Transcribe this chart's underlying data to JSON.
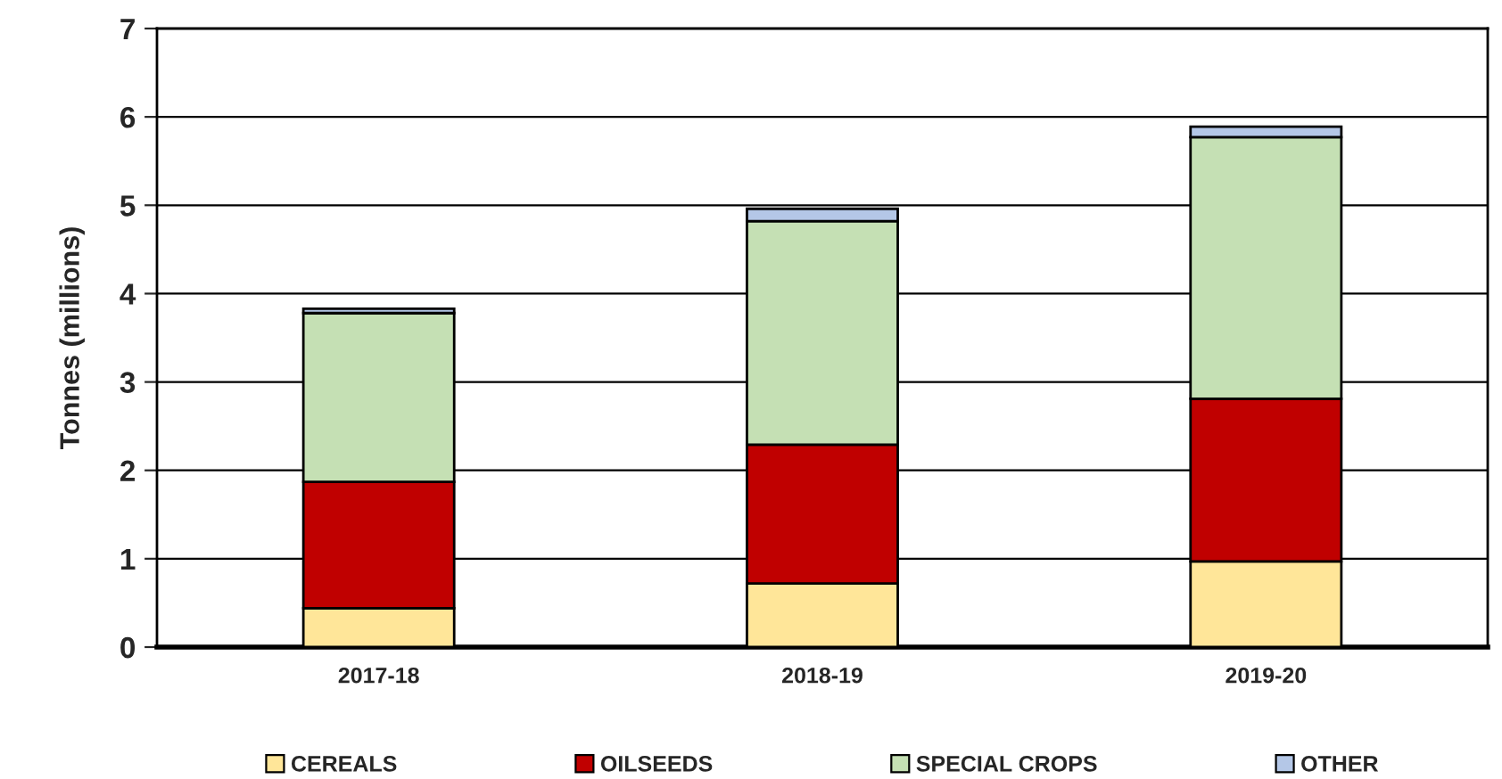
{
  "chart_data": {
    "type": "bar",
    "stacked": true,
    "ylabel": "Tonnes (millions)",
    "categories": [
      "2017-18",
      "2018-19",
      "2019-20"
    ],
    "series": [
      {
        "name": "CEREALS",
        "color": "#ffe699",
        "values": [
          0.44,
          0.72,
          0.97
        ]
      },
      {
        "name": "OILSEEDS",
        "color": "#c00000",
        "values": [
          1.43,
          1.57,
          1.84
        ]
      },
      {
        "name": "SPECIAL CROPS",
        "color": "#c5e0b4",
        "values": [
          1.91,
          2.53,
          2.96
        ]
      },
      {
        "name": "OTHER",
        "color": "#b4c7e7",
        "values": [
          0.05,
          0.14,
          0.12
        ]
      }
    ],
    "ylim": [
      0,
      7
    ],
    "yticks": [
      0,
      1,
      2,
      3,
      4,
      5,
      6,
      7
    ],
    "grid": "y",
    "legend": "bottom"
  }
}
